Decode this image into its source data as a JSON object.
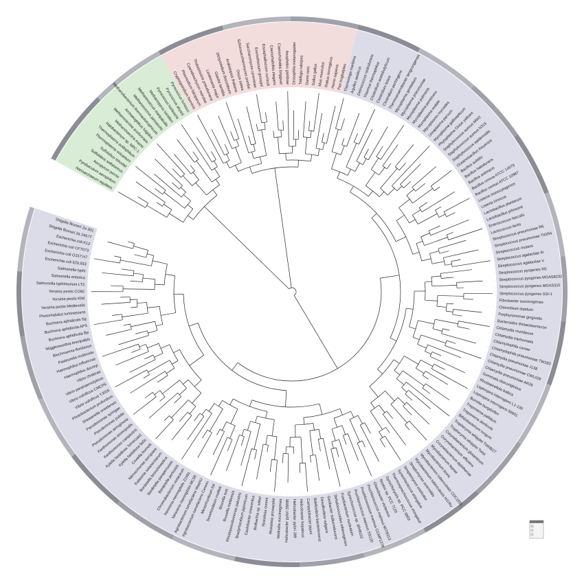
{
  "tree": {
    "clades": [
      {
        "color": "#d8ecd6",
        "leaves": [
          "Nanoarchaeum equitans",
          "Pyrobaculum aerophilum",
          "Aeropyrum pernix",
          "Sulfolobus solfataricus",
          "Sulfolobus tokodaii",
          "Thermoplasma volcanium",
          "Thermoplasma acidophilum",
          "Halobacterium sp. NRC-1",
          "Methanosarcina mazei",
          "Methanosarcina acetivorans",
          "Archaeoglobus fulgidus",
          "Methanobacterium thermautotrophicum",
          "Methanococcus jannaschii",
          "Methanococcus maripaludis",
          "Methanopyrus kandleri",
          "Pyrococcus horikoshii",
          "Pyrococcus abyssi",
          "Pyrococcus furiosus"
        ]
      },
      {
        "color": "#f2dcdc",
        "leaves": [
          "Cryptosporidium hominis",
          "Plasmodium falciparum",
          "Cyanidioschyzon merolae",
          "Thalassiosira pseudonana",
          "Leishmania major",
          "Giardia lamblia",
          "Dictyostelium discoideum",
          "Arabidopsis thaliana",
          "Oryza sativa",
          "Schizosaccharomyces pombe",
          "Saccharomyces cerevisiae",
          "Eremothecium gossypii",
          "Encephalitozoon cuniculi",
          "Caenorhabditis elegans",
          "Caenorhabditis briggsae",
          "Anopheles gambiae",
          "Drosophila melanogaster",
          "Takifugu rubripes",
          "Danio rerio",
          "Gallus gallus",
          "Mus musculus",
          "Rattus norvegicus",
          "Homo sapiens",
          "Pan troglodytes"
        ]
      },
      {
        "color": "#dcdce8",
        "leaves": [
          "Thermotoga maritima",
          "Aquifex aeolicus",
          "Deinococcus radiodurans",
          "Thermus thermophilus",
          "Clostridium acetobutylicum",
          "Clostridium tetani",
          "Clostridium perfringens",
          "Thermoanaerobacter tengcongensis",
          "Mycoplasma genitalium",
          "Mycoplasma pneumoniae",
          "Mycoplasma pulmonis",
          "Mycoplasma penetrans",
          "Mycoplasma mobile",
          "Mycoplasma mycoides",
          "Ureaplasma parvum",
          "Mycoplasma gallisepticum",
          "Phytoplasma Onion yellows",
          "Staphylococcus aureus MW2",
          "Staphylococcus aureus N315",
          "Staphylococcus epidermidis",
          "Oceanobacillus iheyensis",
          "Bacillus subtilis",
          "Bacillus halodurans",
          "Bacillus anthracis",
          "Bacillus cereus ATCC 14579",
          "Bacillus cereus ATCC 10987",
          "Listeria monocytogenes",
          "Listeria innocua",
          "Lactobacillus plantarum",
          "Lactobacillus johnsonii",
          "Enterococcus faecalis",
          "Lactococcus lactis",
          "Streptococcus pneumoniae R6",
          "Streptococcus pneumoniae TIGR4",
          "Streptococcus mutans",
          "Streptococcus agalactiae III",
          "Streptococcus agalactiae V",
          "Streptococcus pyogenes M1",
          "Streptococcus pyogenes MGAS8232",
          "Streptococcus pyogenes MGAS315",
          "Streptococcus pyogenes SSI-1",
          "Fibrobacter succinogenes",
          "Chlorobium tepidum",
          "Porphyromonas gingivalis",
          "Bacteroides thetaiotaomicron",
          "Chlamydia muridarum",
          "Chlamydia trachomatis",
          "Chlamydophila caviae",
          "Chlamydophila pneumoniae TW183",
          "Chlamydia pneumoniae J138",
          "Chlamydia pneumoniae CWL029",
          "Chlamydia pneumoniae AR39",
          "Gemmata obscuriglobus",
          "Rhodopirellula baltica",
          "Leptospira interrogans L1-130",
          "Leptospira interrogans 56601",
          "Borrelia burgdorferi",
          "Treponema pallidum",
          "Treponema denticola",
          "Bifidobacterium longum",
          "Tropheryma whipplei TW08/27",
          "Tropheryma whipplei Twist",
          "Corynebacterium glutamicum",
          "Corynebacterium efficiens",
          "Corynebacterium diphtheriae",
          "Mycobacterium leprae",
          "Mycobacterium bovis",
          "Mycobacterium tuberculosis CDC1551",
          "Mycobacterium tuberculosis H37Rv",
          "Streptomyces avermitilis",
          "Streptomyces coelicolor",
          "Synechococcus elongatus",
          "Thermosynechococcus elongatus",
          "Synechocystis sp. PCC 6803",
          "Nostoc sp. PCC 7120",
          "Gloeobacter violaceus",
          "Prochlorococcus marinus MIT9313",
          "Prochlorococcus marinus CCMP1378",
          "Prochlorococcus marinus SS120",
          "Synechococcus sp. WH8102",
          "Fusobacterium nucleatum",
          "Dehalococcoides ethenogenes",
          "Geobacter sulfurreducens",
          "Desulfovibrio vulgaris",
          "Bdellovibrio bacteriovorus",
          "Campylobacter jejuni",
          "Helicobacter hepaticus",
          "Helicobacter pylori J99",
          "Helicobacter pylori 26695",
          "Wolinella succinogenes",
          "Rickettsia prowazekii",
          "Rickettsia conorii",
          "Wolbachia sp. wMel",
          "Caulobacter crescentus",
          "Bradyrhizobium japonicum",
          "Rhodopseudomonas palustris",
          "Brucella melitensis",
          "Brucella suis",
          "Sinorhizobium meliloti",
          "Mesorhizobium loti",
          "Agrobacterium tumefaciens Cereon",
          "Agrobacterium tumefaciens WashU",
          "Neisseria meningitidis MC58",
          "Neisseria meningitidis Z2491",
          "Chromobacterium violaceum",
          "Bordetella pertussis",
          "Bordetella parapertussis",
          "Bordetella bronchiseptica",
          "Ralstonia solanacearum",
          "Nitrosomonas europaea",
          "Coxiella burnetii",
          "Xylella fastidiosa 9a5c",
          "Xylella fastidiosa Temecula1",
          "Xanthomonas campestris",
          "Xanthomonas axonopodis",
          "Pseudomonas aeruginosa",
          "Pseudomonas putida",
          "Pseudomonas syringae",
          "Shewanella oneidensis",
          "Photobacterium profundum",
          "Vibrio vulnificus YJ016",
          "Vibrio vulnificus CMCP6",
          "Vibrio parahaemolyticus",
          "Vibrio cholerae",
          "Haemophilus ducreyi",
          "Haemophilus influenzae",
          "Pasteurella multocida",
          "Blochmannia floridanus",
          "Wigglesworthia brevipalpis",
          "Buchnera aphidicola Bp",
          "Buchnera aphidicola APS",
          "Buchnera aphidicola Sg",
          "Photorhabdus luminescens",
          "Yersinia pestis Medievalis",
          "Yersinia pestis KIM",
          "Yersinia pestis CO92",
          "Salmonella typhimurium LT2",
          "Salmonella enterica",
          "Salmonella typhi",
          "Escherichia coli EDL933",
          "Escherichia coli O157:H7",
          "Escherichia coli CFT073",
          "Escherichia coli K12",
          "Shigella flexneri 2a 2457T",
          "Shigella flexneri 2a 301"
        ]
      }
    ]
  }
}
